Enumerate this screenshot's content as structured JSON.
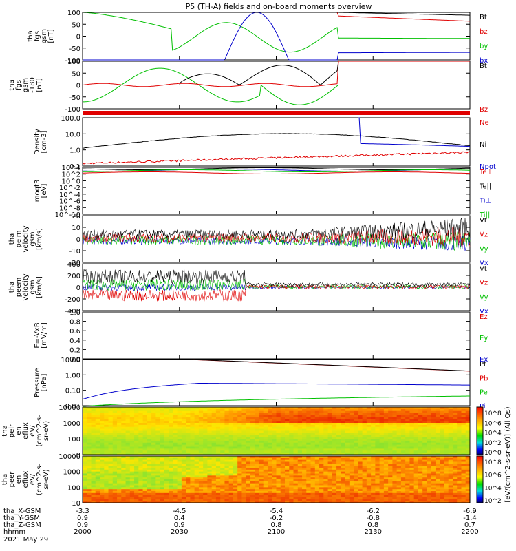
{
  "title": "P5 (TH-A) fields and on-board moments overview",
  "colors": {
    "black": "#000000",
    "red": "#e00000",
    "green": "#00c000",
    "blue": "#0000cc",
    "panel_bg": "#ffffff"
  },
  "panels": [
    {
      "key": "fgs_gsm",
      "ylabel_lines": [
        "tha",
        "fgs",
        "gsm",
        "[nT]"
      ],
      "yticks": [
        "100",
        "50",
        "0",
        "-50",
        "-100"
      ],
      "legend": [
        {
          "label": "Bt",
          "color": "#000000"
        },
        {
          "label": "bz",
          "color": "#e00000"
        },
        {
          "label": "by",
          "color": "#00c000"
        },
        {
          "label": "bx",
          "color": "#0000cc"
        }
      ]
    },
    {
      "key": "fgs_gse",
      "ylabel_lines": [
        "tha",
        "fgs",
        "gsm",
        "-180",
        "[nT]"
      ],
      "yticks": [
        "100",
        "50",
        "0",
        "-50",
        "-100"
      ],
      "legend": [
        {
          "label": "Bt",
          "color": "#000000"
        },
        {
          "label": "Bz",
          "color": "#e00000"
        }
      ]
    },
    {
      "key": "density",
      "ylabel_lines": [
        "Density",
        "[cm-3]"
      ],
      "yticks": [
        "100.0",
        "10.0",
        "1.0",
        "0.1"
      ],
      "legend": [
        {
          "label": "Ne",
          "color": "#e00000"
        },
        {
          "label": "Ni",
          "color": "#000000"
        },
        {
          "label": "Npot",
          "color": "#0000cc"
        }
      ]
    },
    {
      "key": "temp",
      "ylabel_lines": [
        "moqt3",
        "[eV]"
      ],
      "yticks": [
        "10^4",
        "10^2",
        "10^0",
        "10^-2",
        "10^-4",
        "10^-6",
        "10^-8",
        "10^-10"
      ],
      "legend": [
        {
          "label": "Te⊥",
          "color": "#e00000"
        },
        {
          "label": "Te||",
          "color": "#000000"
        },
        {
          "label": "Ti⊥",
          "color": "#0000cc"
        },
        {
          "label": "Ti||",
          "color": "#00c000"
        }
      ]
    },
    {
      "key": "peim_vel",
      "ylabel_lines": [
        "tha",
        "peim",
        "velocity",
        "gsm",
        "[km/s]"
      ],
      "yticks": [
        "20",
        "10",
        "0",
        "-10",
        "-20"
      ],
      "legend": [
        {
          "label": "Vt",
          "color": "#000000"
        },
        {
          "label": "Vz",
          "color": "#e00000"
        },
        {
          "label": "Vy",
          "color": "#00c000"
        },
        {
          "label": "Vx",
          "color": "#0000cc"
        }
      ]
    },
    {
      "key": "peem_vel",
      "ylabel_lines": [
        "tha",
        "peem",
        "velocity",
        "gsm",
        "[km/s]"
      ],
      "yticks": [
        "400",
        "200",
        "0",
        "-200",
        "-400"
      ],
      "legend": [
        {
          "label": "Vt",
          "color": "#000000"
        },
        {
          "label": "Vz",
          "color": "#e00000"
        },
        {
          "label": "Vy",
          "color": "#00c000"
        },
        {
          "label": "Vx",
          "color": "#0000cc"
        }
      ]
    },
    {
      "key": "efield",
      "ylabel_lines": [
        "E=-VxB",
        "[mV/m]"
      ],
      "yticks": [
        "1.0",
        "0.8",
        "0.6",
        "0.4",
        "0.2",
        "0.0"
      ],
      "legend": [
        {
          "label": "Ez",
          "color": "#e00000"
        },
        {
          "label": "Ey",
          "color": "#00c000"
        },
        {
          "label": "Ex",
          "color": "#0000cc"
        }
      ]
    },
    {
      "key": "pressure",
      "ylabel_lines": [
        "Pressure",
        "[nPa]"
      ],
      "yticks": [
        "10.00",
        "1.00",
        "0.10",
        "0.01"
      ],
      "legend": [
        {
          "label": "Pt",
          "color": "#000000"
        },
        {
          "label": "Pb",
          "color": "#e00000"
        },
        {
          "label": "Pe",
          "color": "#00c000"
        },
        {
          "label": "Pi",
          "color": "#0000cc"
        }
      ]
    },
    {
      "key": "peir_eflux",
      "ylabel_lines": [
        "tha",
        "peir",
        "en",
        "eflux",
        "eV/",
        "(cm^2-s-",
        "sr-eV)"
      ],
      "yticks": [
        "10000",
        "1000",
        "100",
        "10"
      ],
      "legend": []
    },
    {
      "key": "peer_eflux",
      "ylabel_lines": [
        "tha",
        "peer",
        "en",
        "eflux",
        "eV/",
        "(cm^2-s-",
        "sr-eV)"
      ],
      "yticks": [
        "10000",
        "1000",
        "100",
        "10"
      ],
      "legend": []
    }
  ],
  "colorbar": {
    "label": "[eV/(cm^2-s-sr-eV)] (All Qs)",
    "ticks_upper": [
      "10^8",
      "10^6",
      "10^4",
      "10^2",
      "10^0"
    ],
    "ticks_lower": [
      "10^8",
      "10^6",
      "10^4",
      "10^2"
    ]
  },
  "xaxis_rows": [
    {
      "label": "tha_X-GSM",
      "values": [
        "-3.3",
        "-4.5",
        "-5.4",
        "-6.2",
        "-6.9"
      ]
    },
    {
      "label": "tha_Y-GSM",
      "values": [
        "0.9",
        "0.4",
        "-0.2",
        "-0.8",
        "-1.4"
      ]
    },
    {
      "label": "tha_Z-GSM",
      "values": [
        "0.9",
        "0.9",
        "0.8",
        "0.8",
        "0.7"
      ]
    },
    {
      "label": "hhmm",
      "values": [
        "2000",
        "2030",
        "2100",
        "2130",
        "2200"
      ]
    }
  ],
  "date_label": "2021 May 29",
  "chart_data": [
    {
      "type": "line",
      "title": "P5 (TH-A) fields and on-board moments overview",
      "x": [
        "2000",
        "2030",
        "2100",
        "2130",
        "2200"
      ],
      "ylabel": "tha fgs gsm [nT]",
      "ylim": [
        -100,
        100
      ],
      "series": [
        {
          "name": "Bt",
          "values": [
            100,
            100,
            100,
            100,
            90
          ]
        },
        {
          "name": "bz",
          "values": [
            100,
            100,
            100,
            80,
            60
          ]
        },
        {
          "name": "by",
          "values": [
            100,
            30,
            0,
            -10,
            -10
          ]
        },
        {
          "name": "bx",
          "values": [
            -100,
            -100,
            -100,
            -70,
            -65
          ]
        }
      ]
    },
    {
      "type": "line",
      "ylabel": "tha fgs gsm -180 [nT]",
      "ylim": [
        -120,
        120
      ],
      "x": [
        "2000",
        "2030",
        "2100",
        "2130",
        "2200"
      ],
      "series": [
        {
          "name": "Bt",
          "values": [
            0,
            0,
            40,
            100,
            100
          ]
        },
        {
          "name": "Bz",
          "values": [
            0,
            0,
            -10,
            0,
            100
          ]
        }
      ]
    },
    {
      "type": "line",
      "ylabel": "Density [cm-3]",
      "ylim": [
        0.1,
        100
      ],
      "x": [
        "2000",
        "2030",
        "2100",
        "2130",
        "2200"
      ],
      "series": [
        {
          "name": "Ne",
          "values": [
            0.15,
            0.2,
            0.4,
            0.6,
            0.6
          ]
        },
        {
          "name": "Ni",
          "values": [
            1.2,
            8,
            10,
            4,
            1.2
          ]
        },
        {
          "name": "Npot",
          "values": [
            null,
            null,
            null,
            2.5,
            1.6
          ]
        }
      ]
    },
    {
      "type": "line",
      "ylabel": "peim velocity gsm [km/s]",
      "ylim": [
        -20,
        20
      ],
      "x": [
        "2000",
        "2030",
        "2100",
        "2130",
        "2200"
      ],
      "series": [
        {
          "name": "Vt",
          "values": [
            3,
            2,
            2,
            5,
            8
          ]
        },
        {
          "name": "Vz",
          "values": [
            1,
            0,
            0,
            2,
            3
          ]
        },
        {
          "name": "Vy",
          "values": [
            0,
            0,
            0,
            -2,
            -4
          ]
        },
        {
          "name": "Vx",
          "values": [
            -1,
            -1,
            0,
            -2,
            -3
          ]
        }
      ]
    },
    {
      "type": "line",
      "ylabel": "peem velocity gsm [km/s]",
      "ylim": [
        -400,
        400
      ],
      "x": [
        "2000",
        "2030",
        "2100",
        "2130",
        "2200"
      ],
      "series": [
        {
          "name": "Vt",
          "values": [
            100,
            220,
            40,
            40,
            60
          ]
        },
        {
          "name": "Vz",
          "values": [
            -100,
            -180,
            0,
            0,
            10
          ]
        },
        {
          "name": "Vy",
          "values": [
            50,
            60,
            10,
            0,
            10
          ]
        },
        {
          "name": "Vx",
          "values": [
            0,
            0,
            0,
            0,
            0
          ]
        }
      ]
    },
    {
      "type": "line",
      "ylabel": "Pressure [nPa]",
      "ylim": [
        0.01,
        20
      ],
      "x": [
        "2000",
        "2030",
        "2100",
        "2130",
        "2200"
      ],
      "series": [
        {
          "name": "Pt",
          "values": [
            20,
            20,
            10,
            5,
            3
          ]
        },
        {
          "name": "Pb",
          "values": [
            20,
            20,
            10,
            5,
            3
          ]
        },
        {
          "name": "Pe",
          "values": [
            0.01,
            0.02,
            0.03,
            0.04,
            0.05
          ]
        },
        {
          "name": "Pi",
          "values": [
            0.03,
            0.4,
            0.35,
            0.3,
            0.28
          ]
        }
      ]
    }
  ]
}
